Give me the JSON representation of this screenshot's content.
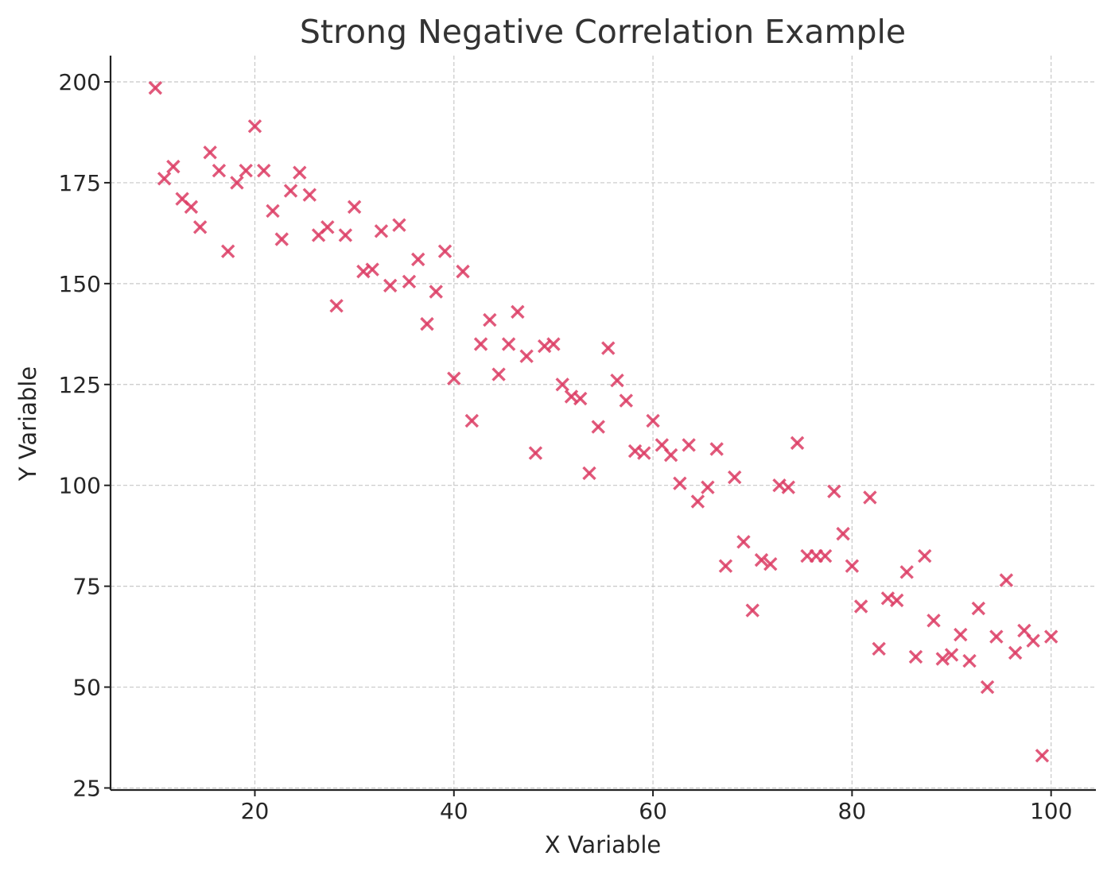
{
  "chart_data": {
    "type": "scatter",
    "title": "Strong Negative Correlation Example",
    "xlabel": "X Variable",
    "ylabel": "Y Variable",
    "xlim": [
      5.5,
      104.5
    ],
    "ylim": [
      24.5,
      206.5
    ],
    "xticks": [
      20,
      40,
      60,
      80,
      100
    ],
    "yticks": [
      25,
      50,
      75,
      100,
      125,
      150,
      175,
      200
    ],
    "grid": true,
    "marker": "x",
    "color": "#dc3c64",
    "series": [
      {
        "x": [
          10,
          10.9,
          11.8,
          12.7,
          13.6,
          14.5,
          15.5,
          16.4,
          17.3,
          18.2,
          19.1,
          20,
          20.9,
          21.8,
          22.7,
          23.6,
          24.5,
          25.5,
          26.4,
          27.3,
          28.2,
          29.1,
          30,
          30.9,
          31.8,
          32.7,
          33.6,
          34.5,
          35.5,
          36.4,
          37.3,
          38.2,
          39.1,
          40,
          40.9,
          41.8,
          42.7,
          43.6,
          44.5,
          45.5,
          46.4,
          47.3,
          48.2,
          49.1,
          50,
          50.9,
          51.8,
          52.7,
          53.6,
          54.5,
          55.5,
          56.4,
          57.3,
          58.2,
          59.1,
          60,
          60.9,
          61.8,
          62.7,
          63.6,
          64.5,
          65.5,
          66.4,
          67.3,
          68.2,
          69.1,
          70,
          70.9,
          71.8,
          72.7,
          73.6,
          74.5,
          75.5,
          76.4,
          77.3,
          78.2,
          79.1,
          80,
          80.9,
          81.8,
          82.7,
          83.6,
          84.5,
          85.5,
          86.4,
          87.3,
          88.2,
          89.1,
          90,
          90.9,
          91.8,
          92.7,
          93.6,
          94.5,
          95.5,
          96.4,
          97.3,
          98.2,
          99.1,
          100
        ],
        "y": [
          198.5,
          176,
          179,
          171,
          169,
          164,
          182.5,
          178,
          158,
          175,
          178,
          189,
          178,
          168,
          161,
          173,
          177.5,
          172,
          162,
          164,
          144.5,
          162,
          169,
          153,
          153.5,
          163,
          149.5,
          164.5,
          150.5,
          156,
          140,
          148,
          158,
          126.5,
          153,
          116,
          135,
          141,
          127.5,
          135,
          143,
          132,
          108,
          134.5,
          135,
          125,
          122,
          121.5,
          103,
          114.5,
          134,
          126,
          121,
          108.5,
          108,
          116,
          110,
          107.5,
          100.5,
          110,
          96,
          99.5,
          109,
          80,
          102,
          86,
          69,
          81.5,
          80.5,
          100,
          99.5,
          110.5,
          82.5,
          82.5,
          82.5,
          98.5,
          88,
          80,
          70,
          97,
          59.5,
          72,
          71.5,
          78.5,
          57.5,
          82.5,
          66.5,
          57,
          58,
          63,
          56.5,
          69.5,
          50,
          62.5,
          76.5,
          58.5,
          64,
          61.5,
          33,
          62.5
        ]
      }
    ]
  }
}
